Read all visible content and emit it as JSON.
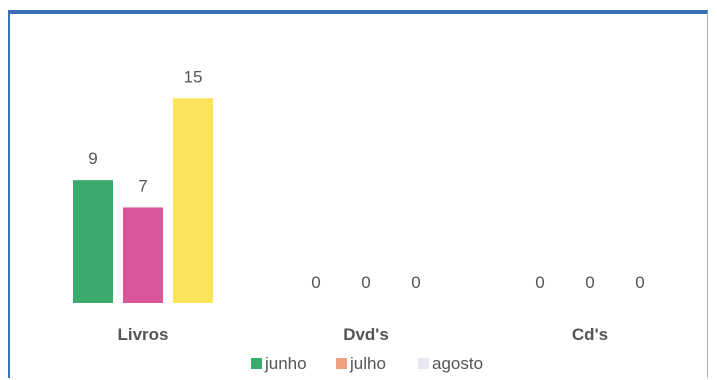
{
  "chart_data": {
    "type": "bar",
    "title": "",
    "xlabel": "",
    "ylabel": "",
    "categories": [
      "Livros",
      "Dvd's",
      "Cd's"
    ],
    "series": [
      {
        "name": "junho",
        "values": [
          9,
          0,
          0
        ],
        "color": "#3aab6e"
      },
      {
        "name": "julho",
        "values": [
          7,
          0,
          0
        ],
        "color": "#d9559c"
      },
      {
        "name": "agosto",
        "values": [
          15,
          0,
          0
        ],
        "color": "#fde25c"
      }
    ],
    "legend_colors": [
      "#3aab6e",
      "#f0a080",
      "#e8e8f2"
    ],
    "ylim": [
      0,
      16
    ],
    "grid": false,
    "legend_position": "bottom"
  }
}
